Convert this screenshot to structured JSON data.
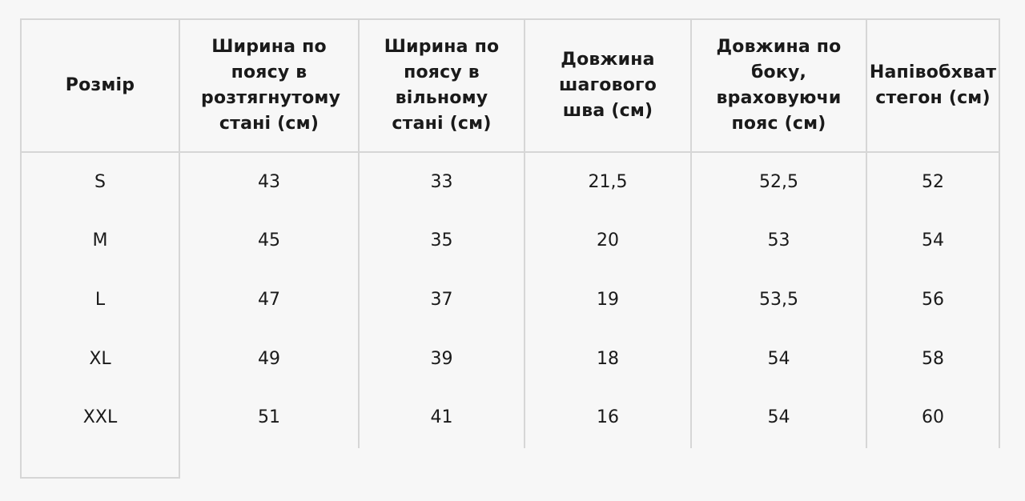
{
  "table": {
    "headers": [
      "Розмір",
      "Ширина по поясу в розтягнутому стані (см)",
      "Ширина по поясу в вільному стані (см)",
      "Довжина шагового шва (см)",
      "Довжина по боку, враховуючи пояс (см)",
      "Напівобхват стегон (см)"
    ],
    "rows": [
      [
        "S",
        "43",
        "33",
        "21,5",
        "52,5",
        "52"
      ],
      [
        "M",
        "45",
        "35",
        "20",
        "53",
        "54"
      ],
      [
        "L",
        "47",
        "37",
        "19",
        "53,5",
        "56"
      ],
      [
        "XL",
        "49",
        "39",
        "18",
        "54",
        "58"
      ],
      [
        "XXL",
        "51",
        "41",
        "16",
        "54",
        "60"
      ]
    ]
  }
}
